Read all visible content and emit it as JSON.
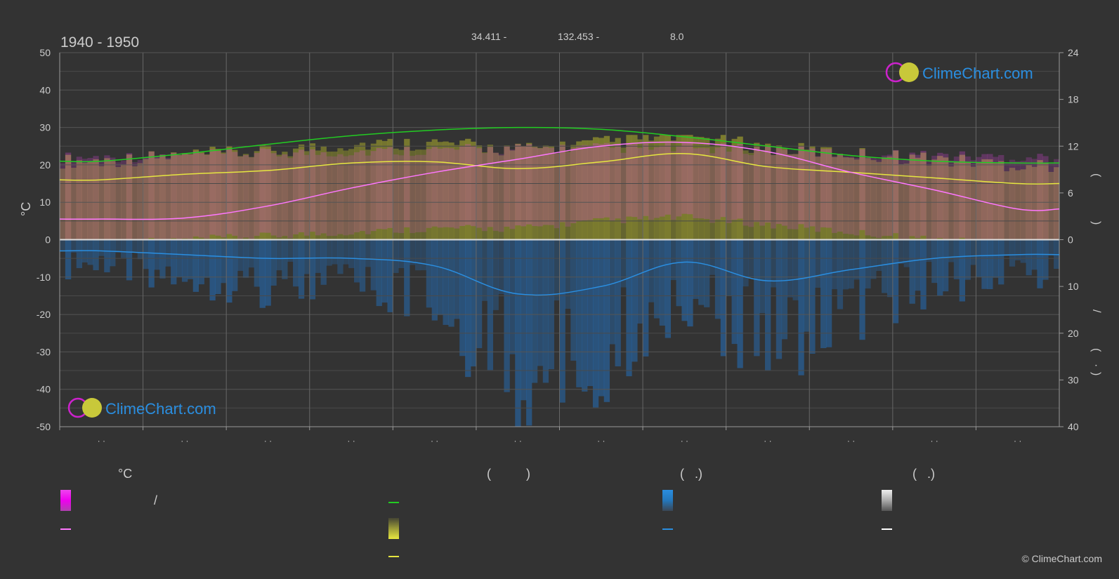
{
  "header": {
    "period": "1940 - 1950",
    "lat": "34.411 -",
    "lon": "132.453 -",
    "elev": "8.0"
  },
  "logo": {
    "text": "ClimeChart.com"
  },
  "copyright": "© ClimeChart.com",
  "left_axis_unit": "°C",
  "right_axis_glyphs": [
    "(",
    ")",
    "/",
    "(",
    "·",
    ")"
  ],
  "month_labels": [
    "· ·",
    "· ·",
    "· ·",
    "· ·",
    "· ·",
    "· ·",
    "· ·",
    "· ·",
    "· ·",
    "· ·",
    "· ·",
    "· ·"
  ],
  "legend": {
    "col1_header": "°C",
    "col1_slash": "/",
    "col2_header": "(          )",
    "col3_header": "(   .)",
    "col4_header": "(   .)"
  },
  "colors": {
    "background": "#333333",
    "grid": "#555555",
    "daylight": "#22cc22",
    "sunshine": "#e6e640",
    "sunshine_fill": "#8a8a2e",
    "temp_range": "#dd44dd",
    "avg_temp": "#ff77ff",
    "precip": "#2277cc",
    "precip_line": "#2a8ee0",
    "snow": "#aaaaaa",
    "logo_blue": "#2a8ee0",
    "logo_magenta": "#cc22cc"
  },
  "chart_data": {
    "type": "line",
    "x": [
      0.5,
      1.5,
      2.5,
      3.5,
      4.5,
      5.5,
      6.5,
      7.5,
      8.5,
      9.5,
      10.5,
      11.5
    ],
    "left_ylim": [
      -50,
      50
    ],
    "left_ticks": [
      50,
      40,
      30,
      20,
      10,
      0,
      -10,
      -20,
      -30,
      -40,
      -50
    ],
    "right_top_ticks": [
      24,
      18,
      12,
      6,
      0
    ],
    "right_bottom_ticks": [
      0,
      10,
      20,
      30,
      40
    ],
    "grid": true,
    "series": [
      {
        "values": [
          5.5,
          5.8,
          9.0,
          13.8,
          18.0,
          21.5,
          25.0,
          26.0,
          23.5,
          18.0,
          13.3,
          8.2
        ]
      },
      {
        "values": [
          16.0,
          17.5,
          18.5,
          20.5,
          20.8,
          19.0,
          20.8,
          23.0,
          19.5,
          18.0,
          16.5,
          15.0
        ]
      },
      {
        "values": [
          21.0,
          23.0,
          25.5,
          27.8,
          29.3,
          30.0,
          29.5,
          27.5,
          25.0,
          22.5,
          21.0,
          20.5
        ]
      },
      {
        "values": [
          -3.0,
          -4.0,
          -5.0,
          -5.0,
          -7.0,
          -14.5,
          -12.5,
          -6.0,
          -11.0,
          -8.0,
          -5.0,
          -4.0
        ]
      },
      {
        "values": [
          8,
          9,
          10,
          11,
          12,
          12,
          14,
          15,
          13,
          11,
          9,
          8
        ]
      },
      {
        "values": [
          12.5,
          13.0,
          13.5,
          14.0,
          14.5,
          14.8,
          15.0,
          15.0,
          14.5,
          13.5,
          13.0,
          12.5
        ]
      }
    ]
  }
}
